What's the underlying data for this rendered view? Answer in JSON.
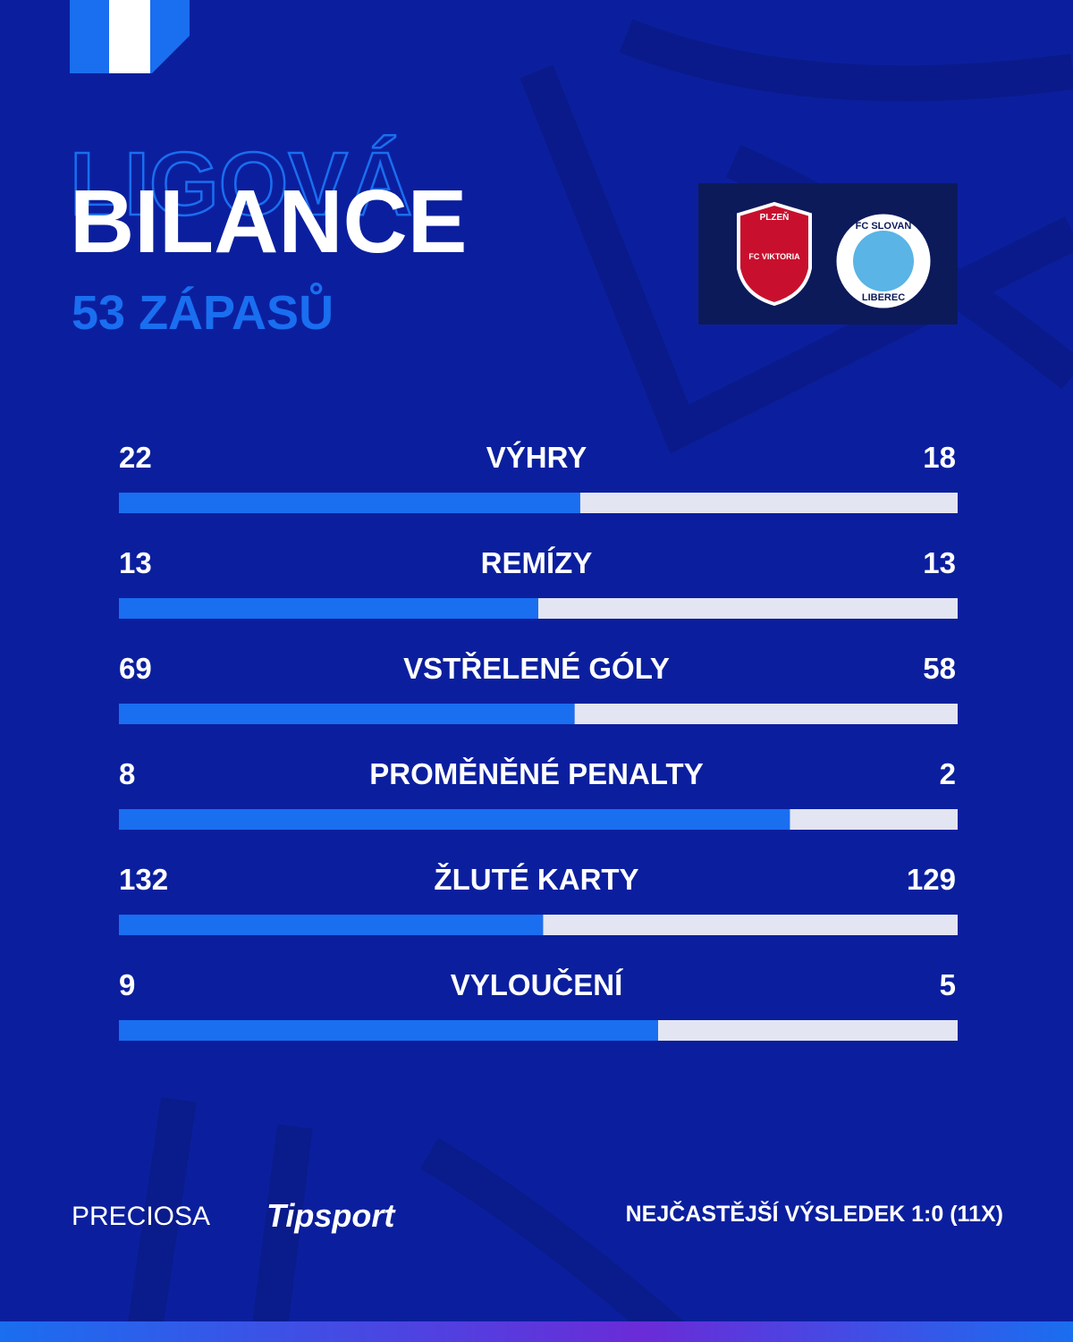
{
  "header": {
    "overline": "LIGOVÁ",
    "title": "BILANCE",
    "subtitle": "53 ZÁPASŮ"
  },
  "teams": [
    {
      "line1": "PLZEŇ",
      "line2": "FC VIKTORIA"
    },
    {
      "line1": "FC SLOVAN",
      "line2": "LIBEREC"
    }
  ],
  "stats": [
    {
      "label": "VÝHRY",
      "home": 22,
      "away": 18
    },
    {
      "label": "REMÍZY",
      "home": 13,
      "away": 13
    },
    {
      "label": "VSTŘELENÉ GÓLY",
      "home": 69,
      "away": 58
    },
    {
      "label": "PROMĚNĚNÉ PENALTY",
      "home": 8,
      "away": 2
    },
    {
      "label": "ŽLUTÉ KARTY",
      "home": 132,
      "away": 129
    },
    {
      "label": "VYLOUČENÍ",
      "home": 9,
      "away": 5
    }
  ],
  "footer": {
    "sponsor1": "PRECIOSA",
    "sponsor2": "Tipsport",
    "note": "NEJČASTĚJŠÍ VÝSLEDEK 1:0 (11X)"
  }
}
